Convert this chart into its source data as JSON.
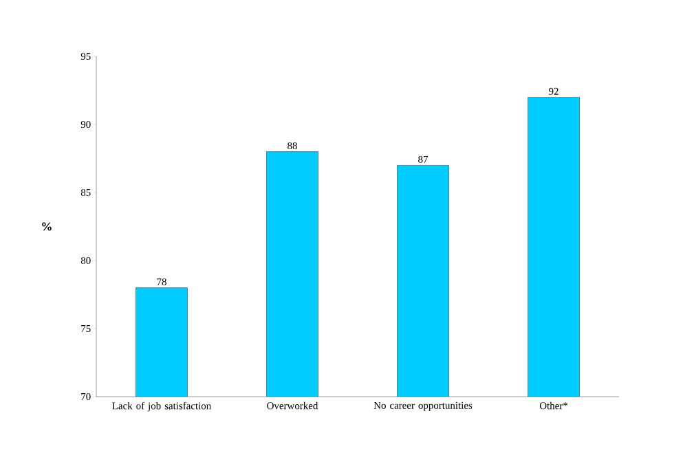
{
  "chart_data": {
    "type": "bar",
    "ylabel": "%",
    "categories": [
      "Lack of job satisfaction",
      "Overworked",
      "No career opportunities",
      "Other*"
    ],
    "values": [
      78,
      88,
      87,
      92
    ],
    "color": "#00ccff",
    "ylim": [
      70,
      95
    ],
    "yticks": [
      70,
      75,
      80,
      85,
      90,
      95
    ],
    "data_labels": true
  }
}
